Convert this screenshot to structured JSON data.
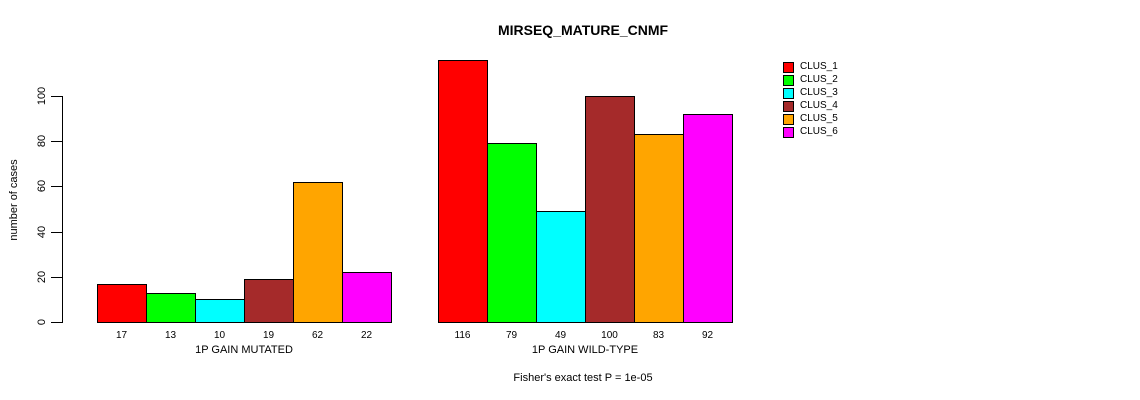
{
  "chart_data": {
    "type": "bar",
    "title": "MIRSEQ_MATURE_CNMF",
    "ylabel": "number of cases",
    "xlabel": "",
    "ylim": [
      0,
      116
    ],
    "yticks": [
      0,
      20,
      40,
      60,
      80,
      100
    ],
    "grid": false,
    "legend_position": "right",
    "series_labels": [
      "CLUS_1",
      "CLUS_2",
      "CLUS_3",
      "CLUS_4",
      "CLUS_5",
      "CLUS_6"
    ],
    "colors": [
      "#ff0000",
      "#00ff00",
      "#00ffff",
      "#a52a2a",
      "#ffa500",
      "#ff00ff"
    ],
    "groups": [
      {
        "label": "1P GAIN MUTATED",
        "values": [
          17,
          13,
          10,
          19,
          62,
          22
        ]
      },
      {
        "label": "1P GAIN WILD-TYPE",
        "values": [
          116,
          79,
          49,
          100,
          83,
          92
        ]
      }
    ],
    "annotation": "Fisher's exact test P = 1e-05"
  },
  "legend": {
    "items": [
      {
        "label": "CLUS_1",
        "color": "#ff0000"
      },
      {
        "label": "CLUS_2",
        "color": "#00ff00"
      },
      {
        "label": "CLUS_3",
        "color": "#00ffff"
      },
      {
        "label": "CLUS_4",
        "color": "#a52a2a"
      },
      {
        "label": "CLUS_5",
        "color": "#ffa500"
      },
      {
        "label": "CLUS_6",
        "color": "#ff00ff"
      }
    ]
  }
}
